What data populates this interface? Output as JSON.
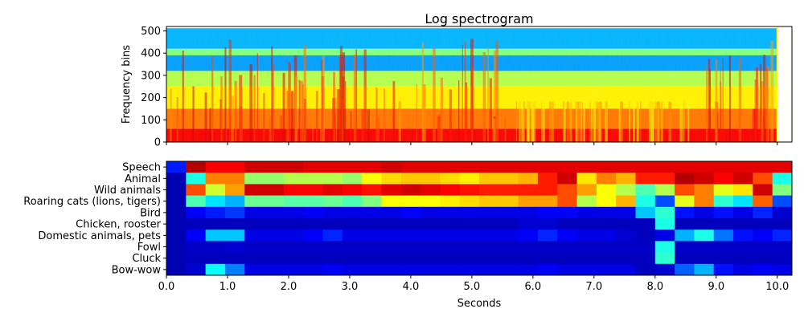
{
  "chart_data": [
    {
      "type": "heatmap",
      "title": "Log spectrogram",
      "xlabel": "",
      "ylabel": "Frequency bins",
      "xlim": [
        0,
        10.24
      ],
      "ylim": [
        0,
        520
      ],
      "yticks": [
        0,
        100,
        200,
        300,
        400,
        500
      ],
      "colormap": "jet",
      "bands": [
        {
          "y0": 0,
          "y1": 60,
          "level": 0.88
        },
        {
          "y0": 60,
          "y1": 150,
          "level": 0.76
        },
        {
          "y0": 150,
          "y1": 250,
          "level": 0.64
        },
        {
          "y0": 250,
          "y1": 320,
          "level": 0.55
        },
        {
          "y0": 320,
          "y1": 390,
          "level": 0.28
        },
        {
          "y0": 390,
          "y1": 420,
          "level": 0.5
        },
        {
          "y0": 420,
          "y1": 512,
          "level": 0.3
        }
      ]
    },
    {
      "type": "heatmap",
      "title": "",
      "xlabel": "Seconds",
      "ylabel": "",
      "xlim": [
        0,
        10.24
      ],
      "xticks": [
        "0.0",
        "1.0",
        "2.0",
        "3.0",
        "4.0",
        "5.0",
        "6.0",
        "7.0",
        "8.0",
        "9.0",
        "10.0"
      ],
      "colormap": "jet",
      "frame_seconds": 0.32,
      "categories": [
        "Speech",
        "Animal",
        "Wild animals",
        "Roaring cats (lions, tigers)",
        "Bird",
        "Chicken, rooster",
        "Domestic animals, pets",
        "Fowl",
        "Cluck",
        "Bow-wow"
      ],
      "values": [
        [
          0.15,
          0.95,
          0.88,
          0.88,
          0.92,
          0.92,
          0.92,
          0.9,
          0.9,
          0.9,
          0.9,
          0.92,
          0.9,
          0.9,
          0.9,
          0.9,
          0.9,
          0.9,
          0.9,
          0.9,
          0.9,
          0.9,
          0.9,
          0.9,
          0.9,
          0.9,
          0.9,
          0.9,
          0.9,
          0.9,
          0.9,
          0.9
        ],
        [
          0.05,
          0.4,
          0.75,
          0.75,
          0.52,
          0.52,
          0.55,
          0.55,
          0.55,
          0.52,
          0.62,
          0.66,
          0.68,
          0.68,
          0.66,
          0.64,
          0.68,
          0.68,
          0.7,
          0.85,
          0.92,
          0.65,
          0.75,
          0.7,
          0.85,
          0.85,
          0.95,
          0.92,
          0.88,
          0.92,
          0.8,
          0.4
        ],
        [
          0.05,
          0.8,
          0.58,
          0.72,
          0.92,
          0.92,
          0.88,
          0.88,
          0.9,
          0.88,
          0.86,
          0.9,
          0.92,
          0.9,
          0.88,
          0.86,
          0.85,
          0.85,
          0.85,
          0.85,
          0.8,
          0.72,
          0.62,
          0.55,
          0.45,
          0.55,
          0.8,
          0.75,
          0.6,
          0.65,
          0.92,
          0.5
        ],
        [
          0.05,
          0.45,
          0.35,
          0.3,
          0.48,
          0.48,
          0.46,
          0.46,
          0.48,
          0.45,
          0.5,
          0.62,
          0.62,
          0.62,
          0.64,
          0.66,
          0.68,
          0.68,
          0.72,
          0.72,
          0.8,
          0.55,
          0.62,
          0.7,
          0.4,
          0.2,
          0.6,
          0.75,
          0.42,
          0.35,
          0.78,
          0.2
        ],
        [
          0.05,
          0.12,
          0.15,
          0.18,
          0.1,
          0.1,
          0.1,
          0.12,
          0.1,
          0.1,
          0.1,
          0.1,
          0.12,
          0.1,
          0.1,
          0.1,
          0.1,
          0.1,
          0.1,
          0.12,
          0.12,
          0.1,
          0.1,
          0.1,
          0.32,
          0.42,
          0.14,
          0.1,
          0.14,
          0.1,
          0.16,
          0.08
        ],
        [
          0.05,
          0.06,
          0.06,
          0.06,
          0.06,
          0.06,
          0.06,
          0.06,
          0.06,
          0.06,
          0.06,
          0.06,
          0.06,
          0.06,
          0.06,
          0.06,
          0.06,
          0.06,
          0.08,
          0.08,
          0.06,
          0.06,
          0.06,
          0.06,
          0.06,
          0.4,
          0.06,
          0.06,
          0.06,
          0.06,
          0.06,
          0.06
        ],
        [
          0.05,
          0.12,
          0.32,
          0.32,
          0.1,
          0.1,
          0.1,
          0.12,
          0.16,
          0.1,
          0.1,
          0.1,
          0.1,
          0.1,
          0.1,
          0.1,
          0.1,
          0.1,
          0.12,
          0.16,
          0.12,
          0.1,
          0.1,
          0.08,
          0.06,
          0.1,
          0.3,
          0.4,
          0.24,
          0.14,
          0.12,
          0.16
        ],
        [
          0.05,
          0.07,
          0.07,
          0.08,
          0.07,
          0.07,
          0.07,
          0.07,
          0.07,
          0.07,
          0.07,
          0.07,
          0.07,
          0.07,
          0.07,
          0.07,
          0.07,
          0.07,
          0.07,
          0.07,
          0.07,
          0.07,
          0.07,
          0.07,
          0.07,
          0.4,
          0.07,
          0.07,
          0.07,
          0.07,
          0.07,
          0.07
        ],
        [
          0.05,
          0.06,
          0.06,
          0.06,
          0.06,
          0.06,
          0.06,
          0.06,
          0.06,
          0.06,
          0.06,
          0.06,
          0.06,
          0.06,
          0.06,
          0.06,
          0.06,
          0.06,
          0.06,
          0.06,
          0.06,
          0.06,
          0.06,
          0.06,
          0.06,
          0.42,
          0.06,
          0.06,
          0.06,
          0.06,
          0.06,
          0.06
        ],
        [
          0.05,
          0.08,
          0.38,
          0.25,
          0.1,
          0.1,
          0.1,
          0.1,
          0.12,
          0.1,
          0.1,
          0.1,
          0.1,
          0.1,
          0.1,
          0.1,
          0.1,
          0.1,
          0.1,
          0.12,
          0.1,
          0.1,
          0.1,
          0.1,
          0.06,
          0.08,
          0.22,
          0.3,
          0.14,
          0.1,
          0.12,
          0.1
        ]
      ]
    }
  ]
}
